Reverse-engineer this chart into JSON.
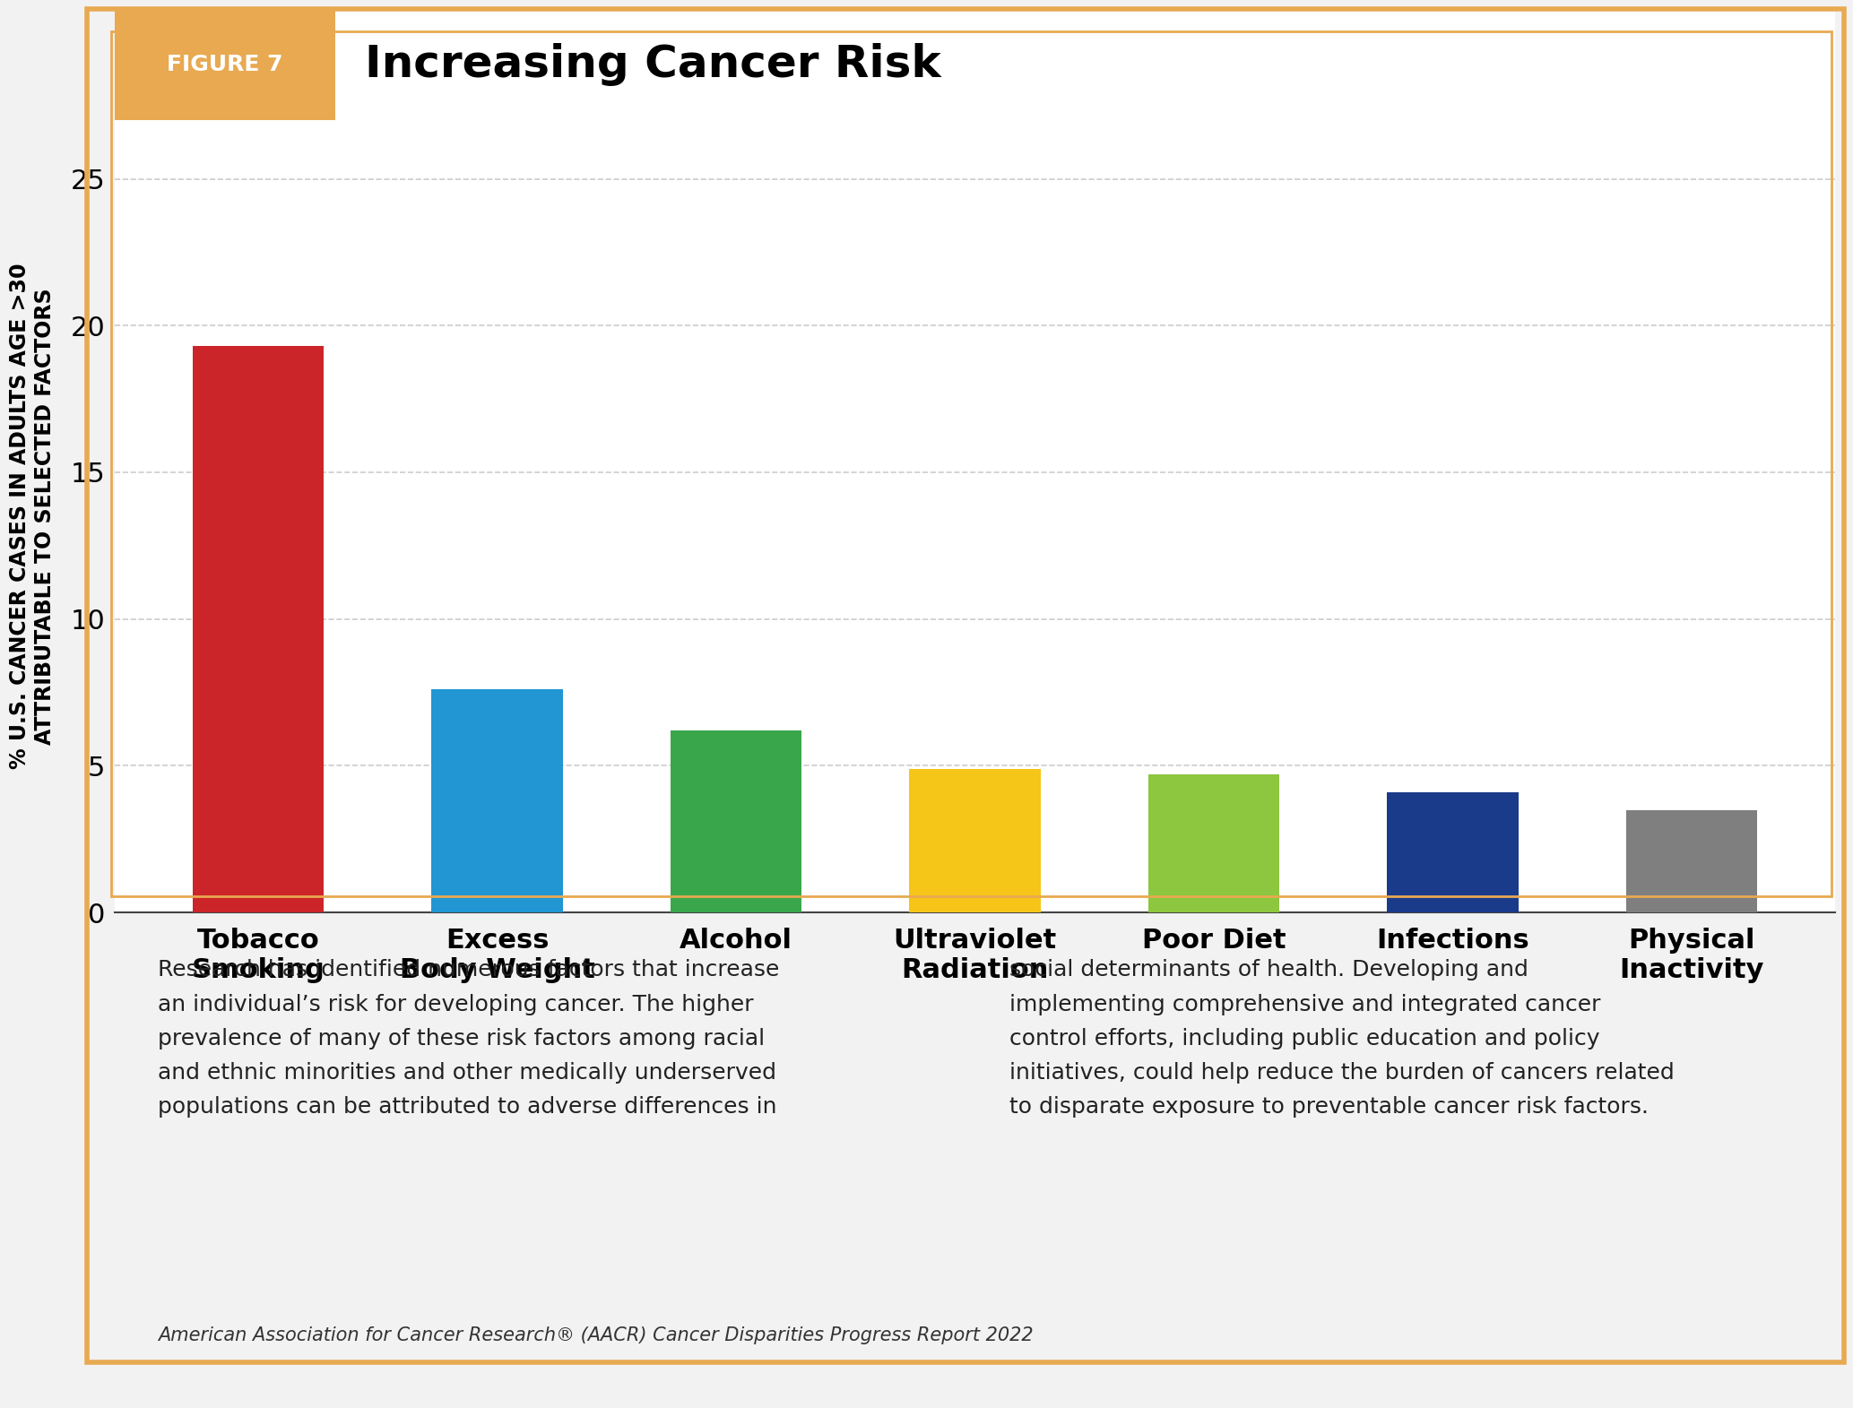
{
  "title": "Increasing Cancer Risk",
  "figure_label": "FIGURE 7",
  "categories": [
    "Tobacco\nSmoking",
    "Excess\nBody Weight",
    "Alcohol",
    "Ultraviolet\nRadiation",
    "Poor Diet",
    "Infections",
    "Physical\nInactivity"
  ],
  "values": [
    19.3,
    7.6,
    6.2,
    4.9,
    4.7,
    4.1,
    3.5
  ],
  "bar_colors": [
    "#cc2529",
    "#2196d3",
    "#3aa64c",
    "#f5c518",
    "#8dc63f",
    "#1a3a8a",
    "#7f7f7f"
  ],
  "ylabel": "% U.S. CANCER CASES IN ADULTS AGE >30\nATTRIBUTABLE TO SELECTED FACTORS",
  "ylim": [
    0,
    27
  ],
  "yticks": [
    0,
    5,
    10,
    15,
    20,
    25
  ],
  "header_bg_color": "#e8a951",
  "figure_bg_color": "#ffffff",
  "bottom_bg_color": "#fae8d8",
  "outer_bg_color": "#f2f2f2",
  "border_color": "#e8a951",
  "header_text_color": "#ffffff",
  "title_color": "#000000",
  "bottom_text_left": "Research has identified numerous factors that increase\nan individual’s risk for developing cancer. The higher\nprevalence of many of these risk factors among racial\nand ethnic minorities and other medically underserved\npopulations can be attributed to adverse differences in",
  "bottom_text_right": "social determinants of health. Developing and\nimplementing comprehensive and integrated cancer\ncontrol efforts, including public education and policy\ninitiatives, could help reduce the burden of cancers related\nto disparate exposure to preventable cancer risk factors.",
  "footer_text": "American Association for Cancer Research® (AACR) Cancer Disparities Progress Report 2022",
  "grid_color": "#cccccc",
  "grid_linestyle": "--",
  "bar_width": 0.55
}
